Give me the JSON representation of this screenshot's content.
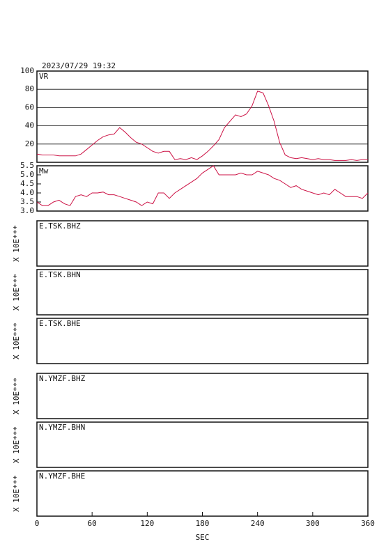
{
  "title": "2023/07/29 19:32",
  "x_axis": {
    "xlim": [
      0,
      360
    ],
    "xticks": [
      0,
      60,
      120,
      180,
      240,
      300,
      360
    ],
    "label": "SEC"
  },
  "chart_data": [
    {
      "type": "line",
      "label": "VR",
      "color": "#cc1144",
      "grid": true,
      "ylim": [
        0,
        100
      ],
      "yticks": [
        20,
        40,
        60,
        80,
        100
      ],
      "x": [
        0,
        6,
        12,
        18,
        24,
        30,
        36,
        42,
        48,
        54,
        60,
        66,
        72,
        78,
        84,
        90,
        96,
        102,
        108,
        114,
        120,
        126,
        132,
        138,
        144,
        150,
        156,
        162,
        168,
        174,
        180,
        186,
        192,
        198,
        204,
        210,
        216,
        222,
        228,
        234,
        240,
        246,
        252,
        258,
        264,
        270,
        276,
        282,
        288,
        294,
        300,
        306,
        312,
        318,
        324,
        330,
        336,
        342,
        348,
        354,
        360
      ],
      "values": [
        9,
        8,
        8,
        8,
        7,
        7,
        7,
        7,
        9,
        14,
        19,
        24,
        28,
        30,
        31,
        38,
        33,
        27,
        22,
        20,
        16,
        12,
        10,
        12,
        12,
        3,
        4,
        3,
        5,
        3,
        7,
        12,
        18,
        25,
        38,
        45,
        52,
        50,
        53,
        62,
        78,
        76,
        62,
        45,
        22,
        8,
        5,
        4,
        5,
        4,
        3,
        4,
        3,
        3,
        2,
        2,
        2,
        3,
        2,
        3,
        3
      ]
    },
    {
      "type": "line",
      "label": "Mw",
      "color": "#cc1144",
      "grid": false,
      "ylim": [
        3.0,
        5.5
      ],
      "yticks": [
        {
          "value": 3.0,
          "label": "3.0"
        },
        {
          "value": 3.5,
          "label": "3.5"
        },
        {
          "value": 4.0,
          "label": "4.0"
        },
        {
          "value": 4.5,
          "label": "4.5"
        },
        {
          "value": 5.0,
          "label": "5.0"
        },
        {
          "value": 5.5,
          "label": "5.5"
        }
      ],
      "x": [
        0,
        6,
        12,
        18,
        24,
        30,
        36,
        42,
        48,
        54,
        60,
        66,
        72,
        78,
        84,
        90,
        96,
        102,
        108,
        114,
        120,
        126,
        132,
        138,
        144,
        150,
        156,
        162,
        168,
        174,
        180,
        186,
        192,
        198,
        204,
        210,
        216,
        222,
        228,
        234,
        240,
        246,
        252,
        258,
        264,
        270,
        276,
        282,
        288,
        294,
        300,
        306,
        312,
        318,
        324,
        330,
        336,
        342,
        348,
        354,
        360
      ],
      "values": [
        3.5,
        3.3,
        3.3,
        3.5,
        3.6,
        3.4,
        3.3,
        3.8,
        3.9,
        3.8,
        4.0,
        4.0,
        4.05,
        3.9,
        3.9,
        3.8,
        3.7,
        3.6,
        3.5,
        3.3,
        3.5,
        3.4,
        4.0,
        4.0,
        3.7,
        4.0,
        4.2,
        4.4,
        4.6,
        4.8,
        5.1,
        5.3,
        5.5,
        5.0,
        5.0,
        5.0,
        5.0,
        5.1,
        5.0,
        5.0,
        5.2,
        5.1,
        5.0,
        4.8,
        4.7,
        4.5,
        4.3,
        4.4,
        4.2,
        4.1,
        4.0,
        3.9,
        4.0,
        3.9,
        4.2,
        4.0,
        3.8,
        3.8,
        3.8,
        3.7,
        4.0
      ]
    },
    {
      "type": "waveform",
      "label": "E.TSK.BHZ",
      "ylabel": "X 10E***"
    },
    {
      "type": "waveform",
      "label": "E.TSK.BHN",
      "ylabel": "X 10E***"
    },
    {
      "type": "waveform",
      "label": "E.TSK.BHE",
      "ylabel": "X 10E***"
    },
    {
      "type": "waveform",
      "label": "N.YMZF.BHZ",
      "ylabel": "X 10E***"
    },
    {
      "type": "waveform",
      "label": "N.YMZF.BHN",
      "ylabel": "X 10E***"
    },
    {
      "type": "waveform",
      "label": "N.YMZF.BHE",
      "ylabel": "X 10E***"
    }
  ]
}
